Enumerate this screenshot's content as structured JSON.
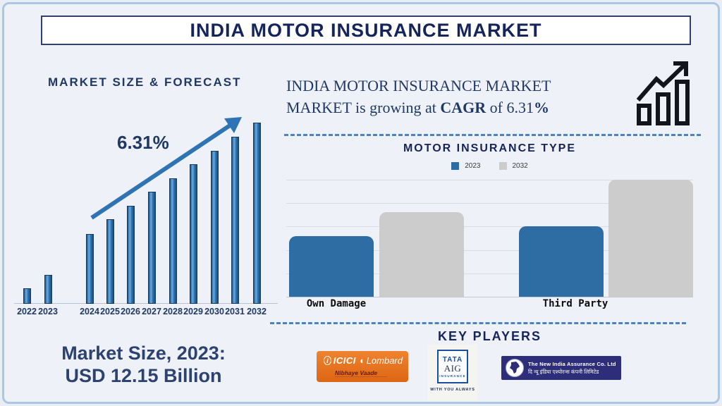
{
  "title_bar": {
    "title": "INDIA MOTOR INSURANCE MARKET"
  },
  "forecast_section": {
    "heading": "MARKET SIZE & FORECAST",
    "cagr_label": "6.31%",
    "market_size_line1": "Market Size, 2023:",
    "market_size_line2": "USD 12.15 Billion"
  },
  "growth_note": {
    "line1": "INDIA MOTOR INSURANCE MARKET",
    "line2_prefix": "MARKET is growing at ",
    "line2_bold": "CAGR",
    "line2_middle": " of 6.31",
    "line2_suffix_bold": "%"
  },
  "type_chart": {
    "heading": "MOTOR INSURANCE TYPE",
    "legend": [
      {
        "label": "2023",
        "color": "#2e6da3"
      },
      {
        "label": "2032",
        "color": "#cccccc"
      }
    ],
    "categories": [
      "Own Damage",
      "Third Party"
    ]
  },
  "key_players": {
    "heading": "KEY PLAYERS",
    "icici": {
      "emblem": "i",
      "brand": "ICICI",
      "swoosh": "◖",
      "brand2": "Lombard",
      "tagline": "Nibhaye Vaade"
    },
    "tata": {
      "line1": "TATA",
      "line2": "AIG",
      "line3": "INSURANCE",
      "tagline": "WITH YOU ALWAYS"
    },
    "new_india": {
      "line1": "The New India Assurance Co. Ltd",
      "line2": "दि न्यू इंडिया एश्योरन्स कंपनी लिमिटेड"
    }
  },
  "colors": {
    "navy_text": "#1f3864",
    "dark_title": "#15245a",
    "bar_blue": "#2e74b5",
    "bar_blue_dark_edge": "#1f4e79",
    "type_blue": "#2e6da3",
    "type_gray": "#cccccc",
    "dashed_line": "#4a83c1",
    "page_background": "#eef1f7",
    "page_border": "#abc7e3",
    "icici_orange": "#e8741e",
    "tata_blue": "#1b4f9c",
    "nia_navy": "#2e2d7a"
  },
  "chart_data": [
    {
      "type": "bar",
      "title": "MARKET SIZE & FORECAST",
      "categories": [
        "2022",
        "2023",
        "2024",
        "2025",
        "2026",
        "2027",
        "2028",
        "2029",
        "2030",
        "2031",
        "2032"
      ],
      "values": [
        22,
        41,
        99,
        120,
        139,
        159,
        178,
        198,
        217,
        237,
        257
      ],
      "units": "relative bar heights in px (illustrative growth chart, no y-axis shown)",
      "annotation": "6.31%",
      "annotation_meaning": "CAGR trend arrow label",
      "bar_color": "#2e74b5",
      "trend_arrow": true,
      "xlabel": "",
      "ylabel": "",
      "grid": false,
      "legend_position": "none"
    },
    {
      "type": "bar",
      "title": "MOTOR INSURANCE TYPE",
      "categories": [
        "Own Damage",
        "Third Party"
      ],
      "series": [
        {
          "name": "2023",
          "color": "#2e6da3",
          "values": [
            2.6,
            3.0
          ]
        },
        {
          "name": "2032",
          "color": "#cccccc",
          "values": [
            3.6,
            5.0
          ]
        }
      ],
      "ylim": [
        0,
        5
      ],
      "units": "estimated gridline units (no y-axis tick labels shown)",
      "grid": true,
      "gridline_count": 6,
      "legend_position": "top",
      "xlabel": "",
      "ylabel": ""
    }
  ]
}
